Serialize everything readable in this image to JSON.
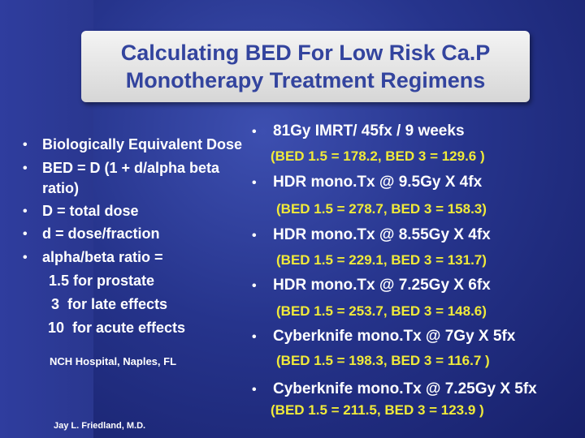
{
  "title": {
    "line1": "Calculating BED For Low Risk Ca.P",
    "line2": "Monotherapy Treatment Regimens"
  },
  "left_list": {
    "items": [
      "Biologically Equivalent Dose",
      "BED = D (1 + d/alpha beta",
      "ratio)",
      "D = total dose",
      "d = dose/fraction",
      "alpha/beta ratio ="
    ],
    "sub": [
      "1.5 for prostate",
      "3  for late effects",
      "10  for acute effects"
    ],
    "hospital": "NCH Hospital, Naples, FL",
    "author": "Jay L. Friedland, M.D."
  },
  "right_list": {
    "regimens": [
      {
        "label": "81Gy IMRT/ 45fx / 9 weeks",
        "bed": "(BED 1.5 = 178.2, BED 3 = 129.6 )"
      },
      {
        "label": "HDR mono.Tx @ 9.5Gy X 4fx",
        "bed": "(BED 1.5 = 278.7, BED 3 = 158.3)"
      },
      {
        "label": "HDR mono.Tx @ 8.55Gy X 4fx",
        "bed": "(BED 1.5 = 229.1, BED 3 = 131.7)"
      },
      {
        "label": "HDR mono.Tx @ 7.25Gy X 6fx",
        "bed": "(BED 1.5 = 253.7, BED 3 = 148.6)"
      },
      {
        "label": "Cyberknife mono.Tx @ 7Gy X 5fx",
        "bed": "(BED 1.5 = 198.3, BED 3 = 116.7 )"
      },
      {
        "label": "Cyberknife mono.Tx @ 7.25Gy X 5fx",
        "bed": "(BED 1.5 = 211.5, BED 3 = 123.9 )"
      }
    ]
  },
  "bullet_symbol": "•",
  "colors": {
    "background": "#26348c",
    "title_text": "#33449e",
    "title_box": "#e8e8e8",
    "body_text": "#ffffff",
    "bed_text": "#f0ea3a"
  }
}
